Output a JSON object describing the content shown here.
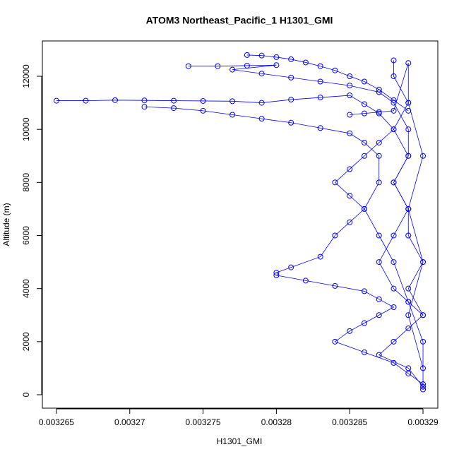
{
  "chart_data": {
    "type": "scatter",
    "title": "ATOM3 Northeast_Pacific_1 H1301_GMI",
    "x_label": "H1301_GMI",
    "y_label": "Altitude (m)",
    "color": "#0000ff",
    "xlim": [
      0.00326404,
      0.00329101
    ],
    "ylim": [
      -505,
      13330
    ],
    "xticks": [
      0.003265,
      0.00327,
      0.003275,
      0.00328,
      0.003285,
      0.00329
    ],
    "yticks": [
      0,
      2000,
      4000,
      6000,
      8000,
      10000,
      12000
    ],
    "series": [
      {
        "x": [
          0.003278,
          0.003279,
          0.00328,
          0.003281,
          0.003282,
          0.003283,
          0.003284,
          0.003285,
          0.003286,
          0.003287,
          0.003288,
          0.003289
        ],
        "y": [
          12800,
          12780,
          12720,
          12640,
          12520,
          12380,
          12220,
          12000,
          11800,
          11500,
          11100,
          10700
        ]
      },
      {
        "x": [
          0.003274,
          0.003276,
          0.003278,
          0.00328,
          0.003277,
          0.003279,
          0.003281,
          0.003283,
          0.003285,
          0.003287,
          0.003288,
          0.003289,
          0.003289,
          0.003288,
          0.003289,
          0.003289,
          0.00329,
          0.003289,
          0.00329
        ],
        "y": [
          12380,
          12380,
          12400,
          12420,
          12250,
          12100,
          11950,
          11800,
          11650,
          11400,
          11000,
          10000,
          9000,
          8000,
          7000,
          6000,
          5000,
          4000,
          3000
        ]
      },
      {
        "x": [
          0.003265,
          0.003267,
          0.003269,
          0.003271,
          0.003273,
          0.003275,
          0.003277,
          0.003279,
          0.003281,
          0.003283,
          0.003285,
          0.003286,
          0.003287,
          0.003288,
          0.003287,
          0.003286,
          0.003285,
          0.003284,
          0.003285,
          0.003286,
          0.003285,
          0.003284,
          0.003283,
          0.003281,
          0.00328
        ],
        "y": [
          11080,
          11080,
          11100,
          11090,
          11080,
          11070,
          11060,
          11000,
          11120,
          11200,
          11280,
          10950,
          10600,
          10000,
          9500,
          9000,
          8500,
          8000,
          7500,
          7000,
          6500,
          6000,
          5200,
          4800,
          4600
        ]
      },
      {
        "x": [
          0.003271,
          0.003273,
          0.003275,
          0.003277,
          0.003279,
          0.003281,
          0.003283,
          0.003285,
          0.003286,
          0.003287,
          0.003287,
          0.003286,
          0.003287,
          0.003288,
          0.003289,
          0.00329,
          0.00329
        ],
        "y": [
          10850,
          10800,
          10700,
          10550,
          10400,
          10250,
          10050,
          9850,
          9500,
          9000,
          8000,
          7000,
          6000,
          5000,
          3500,
          2000,
          200
        ]
      },
      {
        "x": [
          0.00328,
          0.003282,
          0.003284,
          0.003286,
          0.003287,
          0.003288,
          0.003287,
          0.003286,
          0.003285,
          0.003284,
          0.003286,
          0.003288,
          0.003289,
          0.00329
        ],
        "y": [
          4500,
          4300,
          4100,
          3900,
          3600,
          3300,
          3000,
          2700,
          2400,
          2000,
          1600,
          1200,
          800,
          400
        ]
      },
      {
        "x": [
          0.003288,
          0.003288,
          0.003289,
          0.003288,
          0.003289,
          0.003288,
          0.003289,
          0.003288,
          0.003287,
          0.003288,
          0.003289,
          0.00329,
          0.003289,
          0.003288,
          0.003287,
          0.003289,
          0.00329
        ],
        "y": [
          12600,
          12000,
          11000,
          10000,
          9000,
          8000,
          7000,
          6000,
          5000,
          4000,
          3500,
          3000,
          2500,
          2000,
          1500,
          1000,
          300
        ]
      },
      {
        "x": [
          0.003285,
          0.003286,
          0.003287,
          0.003288,
          0.003289,
          0.003289,
          0.00329,
          0.003289,
          0.00329,
          0.003289,
          0.00329
        ],
        "y": [
          10550,
          10600,
          10650,
          10700,
          12500,
          11000,
          9000,
          7000,
          5000,
          3000,
          1000
        ]
      }
    ]
  }
}
